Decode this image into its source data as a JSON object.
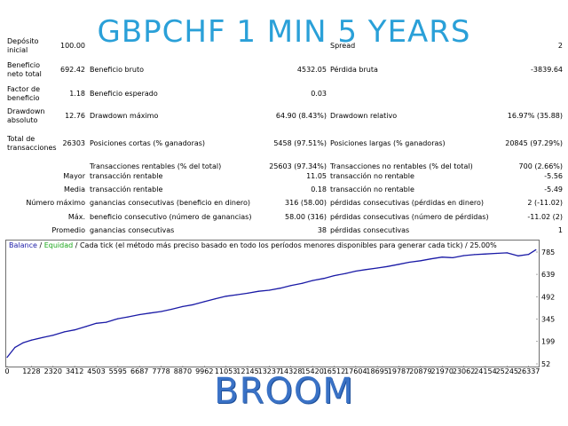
{
  "title": "GBPCHF 1 MIN 5 YEARS",
  "footer_title": "BROOM",
  "report": {
    "rows": [
      {
        "labelA": [
          "Depósito",
          "inicial"
        ],
        "valueA": "100.00",
        "labelB": "",
        "valueB": "",
        "labelC": "Spread",
        "valueC": "2"
      },
      {
        "labelA": [
          "Beneficio",
          "neto total"
        ],
        "valueA": "692.42",
        "labelB": "Beneficio bruto",
        "valueB": "4532.05",
        "labelC": "Pérdida bruta",
        "valueC": "-3839.64"
      },
      {
        "labelA": [
          "Factor de",
          "beneficio"
        ],
        "valueA": "1.18",
        "labelB": "Beneficio esperado",
        "valueB": "0.03",
        "labelC": "",
        "valueC": ""
      },
      {
        "labelA": [
          "Drawdown",
          "absoluto"
        ],
        "valueA": "12.76",
        "labelB": "Drawdown máximo",
        "valueB": "64.90 (8.43%)",
        "labelC": "Drawdown relativo",
        "valueC": "16.97% (35.88)"
      },
      {
        "labelA": [
          "Total de",
          "transacciones"
        ],
        "valueA": "26303",
        "labelB": "Posiciones cortas (% ganadoras)",
        "valueB": "5458 (97.51%)",
        "labelC": "Posiciones largas (% ganadoras)",
        "valueC": "20845 (97.29%)"
      },
      {
        "labelA": [
          "",
          ""
        ],
        "valueA": "",
        "labelB": "Transacciones rentables (% del total)",
        "valueB": "25603 (97.34%)",
        "labelC": "Transacciones no rentables (% del total)",
        "valueC": "700 (2.66%)"
      },
      {
        "prefix": "Mayor",
        "labelB": "transacción rentable",
        "valueB": "11.05",
        "labelC": "transacción no rentable",
        "valueC": "-5.56"
      },
      {
        "prefix": "Media",
        "labelB": "transacción rentable",
        "valueB": "0.18",
        "labelC": "transacción no rentable",
        "valueC": "-5.49"
      },
      {
        "prefix": "Número máximo",
        "labelB": "ganancias consecutivas (beneficio en dinero)",
        "valueB": "316 (58.00)",
        "labelC": "pérdidas consecutivas (pérdidas en dinero)",
        "valueC": "2 (-11.02)"
      },
      {
        "prefix": "Máx.",
        "labelB": "beneficio consecutivo (número de ganancias)",
        "valueB": "58.00 (316)",
        "labelC": "pérdidas consecutivas (número de pérdidas)",
        "valueC": "-11.02 (2)"
      },
      {
        "prefix": "Promedio",
        "labelB": "ganancias consecutivas",
        "valueB": "38",
        "labelC": "pérdidas consecutivas",
        "valueC": "1"
      }
    ]
  },
  "legend": {
    "balance": "Balance",
    "sep1": " / ",
    "equity": "Equidad",
    "rest": " / Cada tick (el método más preciso basado en todo los períodos menores disponibles para generar cada tick) / 25.00%"
  },
  "colors": {
    "title": "#2aa0d8",
    "balance_line": "#1a1aa6",
    "equity_label": "#1aa61a",
    "footer": "#3a72c6"
  },
  "chart_data": {
    "type": "line",
    "title": "",
    "xlabel": "",
    "ylabel": "",
    "x_ticks": [
      "0",
      "1228",
      "2320",
      "3412",
      "4503",
      "5595",
      "6687",
      "7778",
      "8870",
      "9962",
      "11053",
      "12145",
      "13237",
      "14328",
      "15420",
      "16512",
      "17604",
      "18695",
      "19787",
      "20879",
      "21970",
      "23062",
      "24154",
      "25245",
      "26337"
    ],
    "y_ticks": [
      "785",
      "639",
      "492",
      "345",
      "199",
      "52"
    ],
    "xlim": [
      0,
      26800
    ],
    "ylim": [
      52,
      785
    ],
    "series": [
      {
        "name": "Balance",
        "x": [
          0,
          400,
          800,
          1228,
          1800,
          2320,
          2900,
          3412,
          4000,
          4503,
          5000,
          5595,
          6100,
          6687,
          7200,
          7778,
          8300,
          8870,
          9400,
          9962,
          10500,
          11053,
          11600,
          12145,
          12700,
          13237,
          13800,
          14328,
          14900,
          15420,
          16000,
          16512,
          17100,
          17604,
          18100,
          18695,
          19200,
          19787,
          20300,
          20879,
          21400,
          21970,
          22500,
          23062,
          23600,
          24154,
          24700,
          25245,
          25800,
          26337,
          26700
        ],
        "values": [
          95,
          160,
          190,
          208,
          225,
          240,
          262,
          275,
          298,
          318,
          325,
          348,
          360,
          375,
          385,
          395,
          410,
          428,
          440,
          460,
          478,
          495,
          505,
          515,
          528,
          535,
          548,
          565,
          580,
          598,
          612,
          630,
          645,
          660,
          670,
          680,
          690,
          705,
          718,
          728,
          740,
          752,
          748,
          762,
          768,
          772,
          776,
          780,
          760,
          770,
          800
        ]
      }
    ]
  }
}
